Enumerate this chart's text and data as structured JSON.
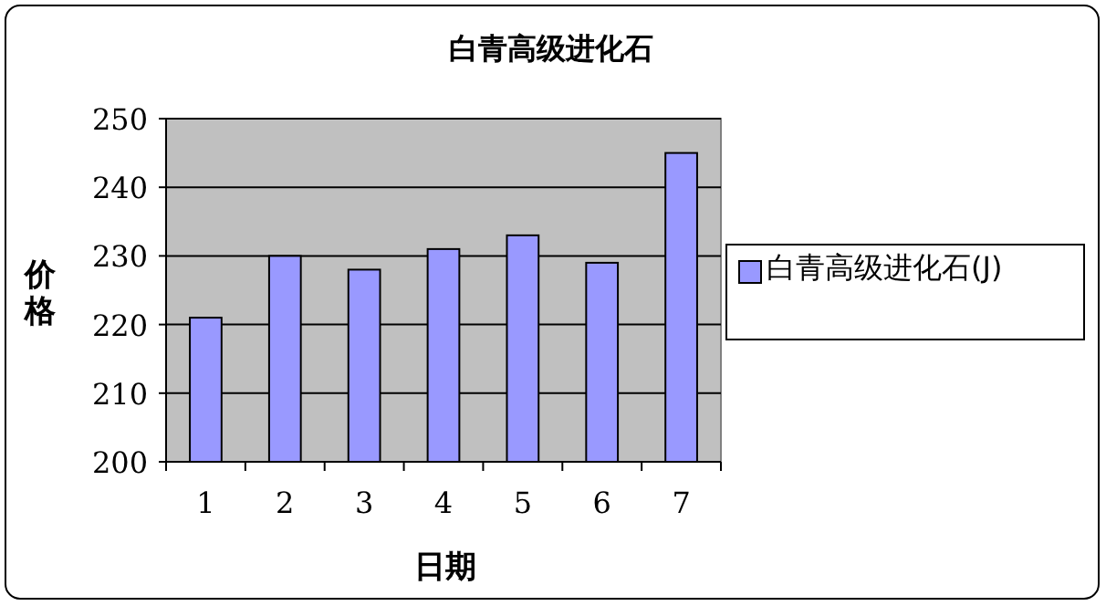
{
  "chart_data": {
    "type": "bar",
    "title": "白青高级进化石",
    "xlabel": "日期",
    "ylabel": "价格",
    "categories": [
      "1",
      "2",
      "3",
      "4",
      "5",
      "6",
      "7"
    ],
    "series": [
      {
        "name": "白青高级进化石(J)",
        "color": "#9999ff",
        "values": [
          221,
          230,
          228,
          231,
          233,
          229,
          245
        ]
      }
    ],
    "ylim": [
      200,
      250
    ],
    "yticks": [
      200,
      210,
      220,
      230,
      240,
      250
    ],
    "grid": "y",
    "legend": "right"
  }
}
